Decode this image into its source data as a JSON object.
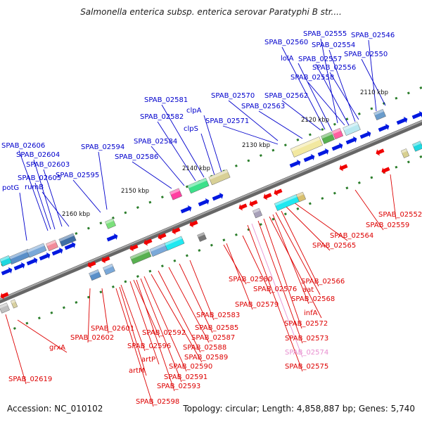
{
  "title": "Salmonella enterica subsp. enterica serovar Paratyphi B str....",
  "footer": {
    "accession": "Accession: NC_010102",
    "topology": "Topology: circular; Length: 4,858,887 bp; Genes: 5,740"
  },
  "colors": {
    "forward_label": "#0000cc",
    "reverse_label": "#dd0000",
    "highlight_label": "#e88fd0",
    "backbone": "#888888",
    "tick": "#2a7d2a"
  },
  "kbp_labels": [
    "2110 kbp",
    "2120 kbp",
    "2130 kbp",
    "2140 kbp",
    "2150 kbp",
    "2160 kbp"
  ],
  "forward_genes": [
    "SPAB_02555",
    "SPAB_02546",
    "SPAB_02560",
    "SPAB_02554",
    "lolA",
    "SPAB_02557",
    "SPAB_02550",
    "SPAB_02556",
    "SPAB_02558",
    "SPAB_02581",
    "SPAB_02570",
    "SPAB_02562",
    "clpA",
    "SPAB_02582",
    "SPAB_02563",
    "SPAB_02571",
    "clpS",
    "SPAB_02584",
    "SPAB_02594",
    "SPAB_02606",
    "SPAB_02586",
    "SPAB_02604",
    "SPAB_02603",
    "SPAB_02595",
    "SPAB_02605",
    "potG",
    "rumB"
  ],
  "reverse_genes": [
    "SPAB_02552",
    "SPAB_02559",
    "SPAB_02564",
    "SPAB_02565",
    "SPAB_02580",
    "SPAB_02566",
    "SPAB_02576",
    "aat",
    "SPAB_02579",
    "SPAB_02568",
    "SPAB_02583",
    "infA",
    "SPAB_02572",
    "SPAB_02601",
    "SPAB_02585",
    "SPAB_02592",
    "SPAB_02602",
    "SPAB_02587",
    "SPAB_02573",
    "grxA",
    "SPAB_02596",
    "SPAB_02588",
    "artP",
    "SPAB_02574",
    "SPAB_02589",
    "SPAB_02575",
    "artM",
    "SPAB_02590",
    "SPAB_02591",
    "SPAB_02619",
    "SPAB_02593",
    "SPAB_02598"
  ],
  "highlighted_gene": "SPAB_02574"
}
